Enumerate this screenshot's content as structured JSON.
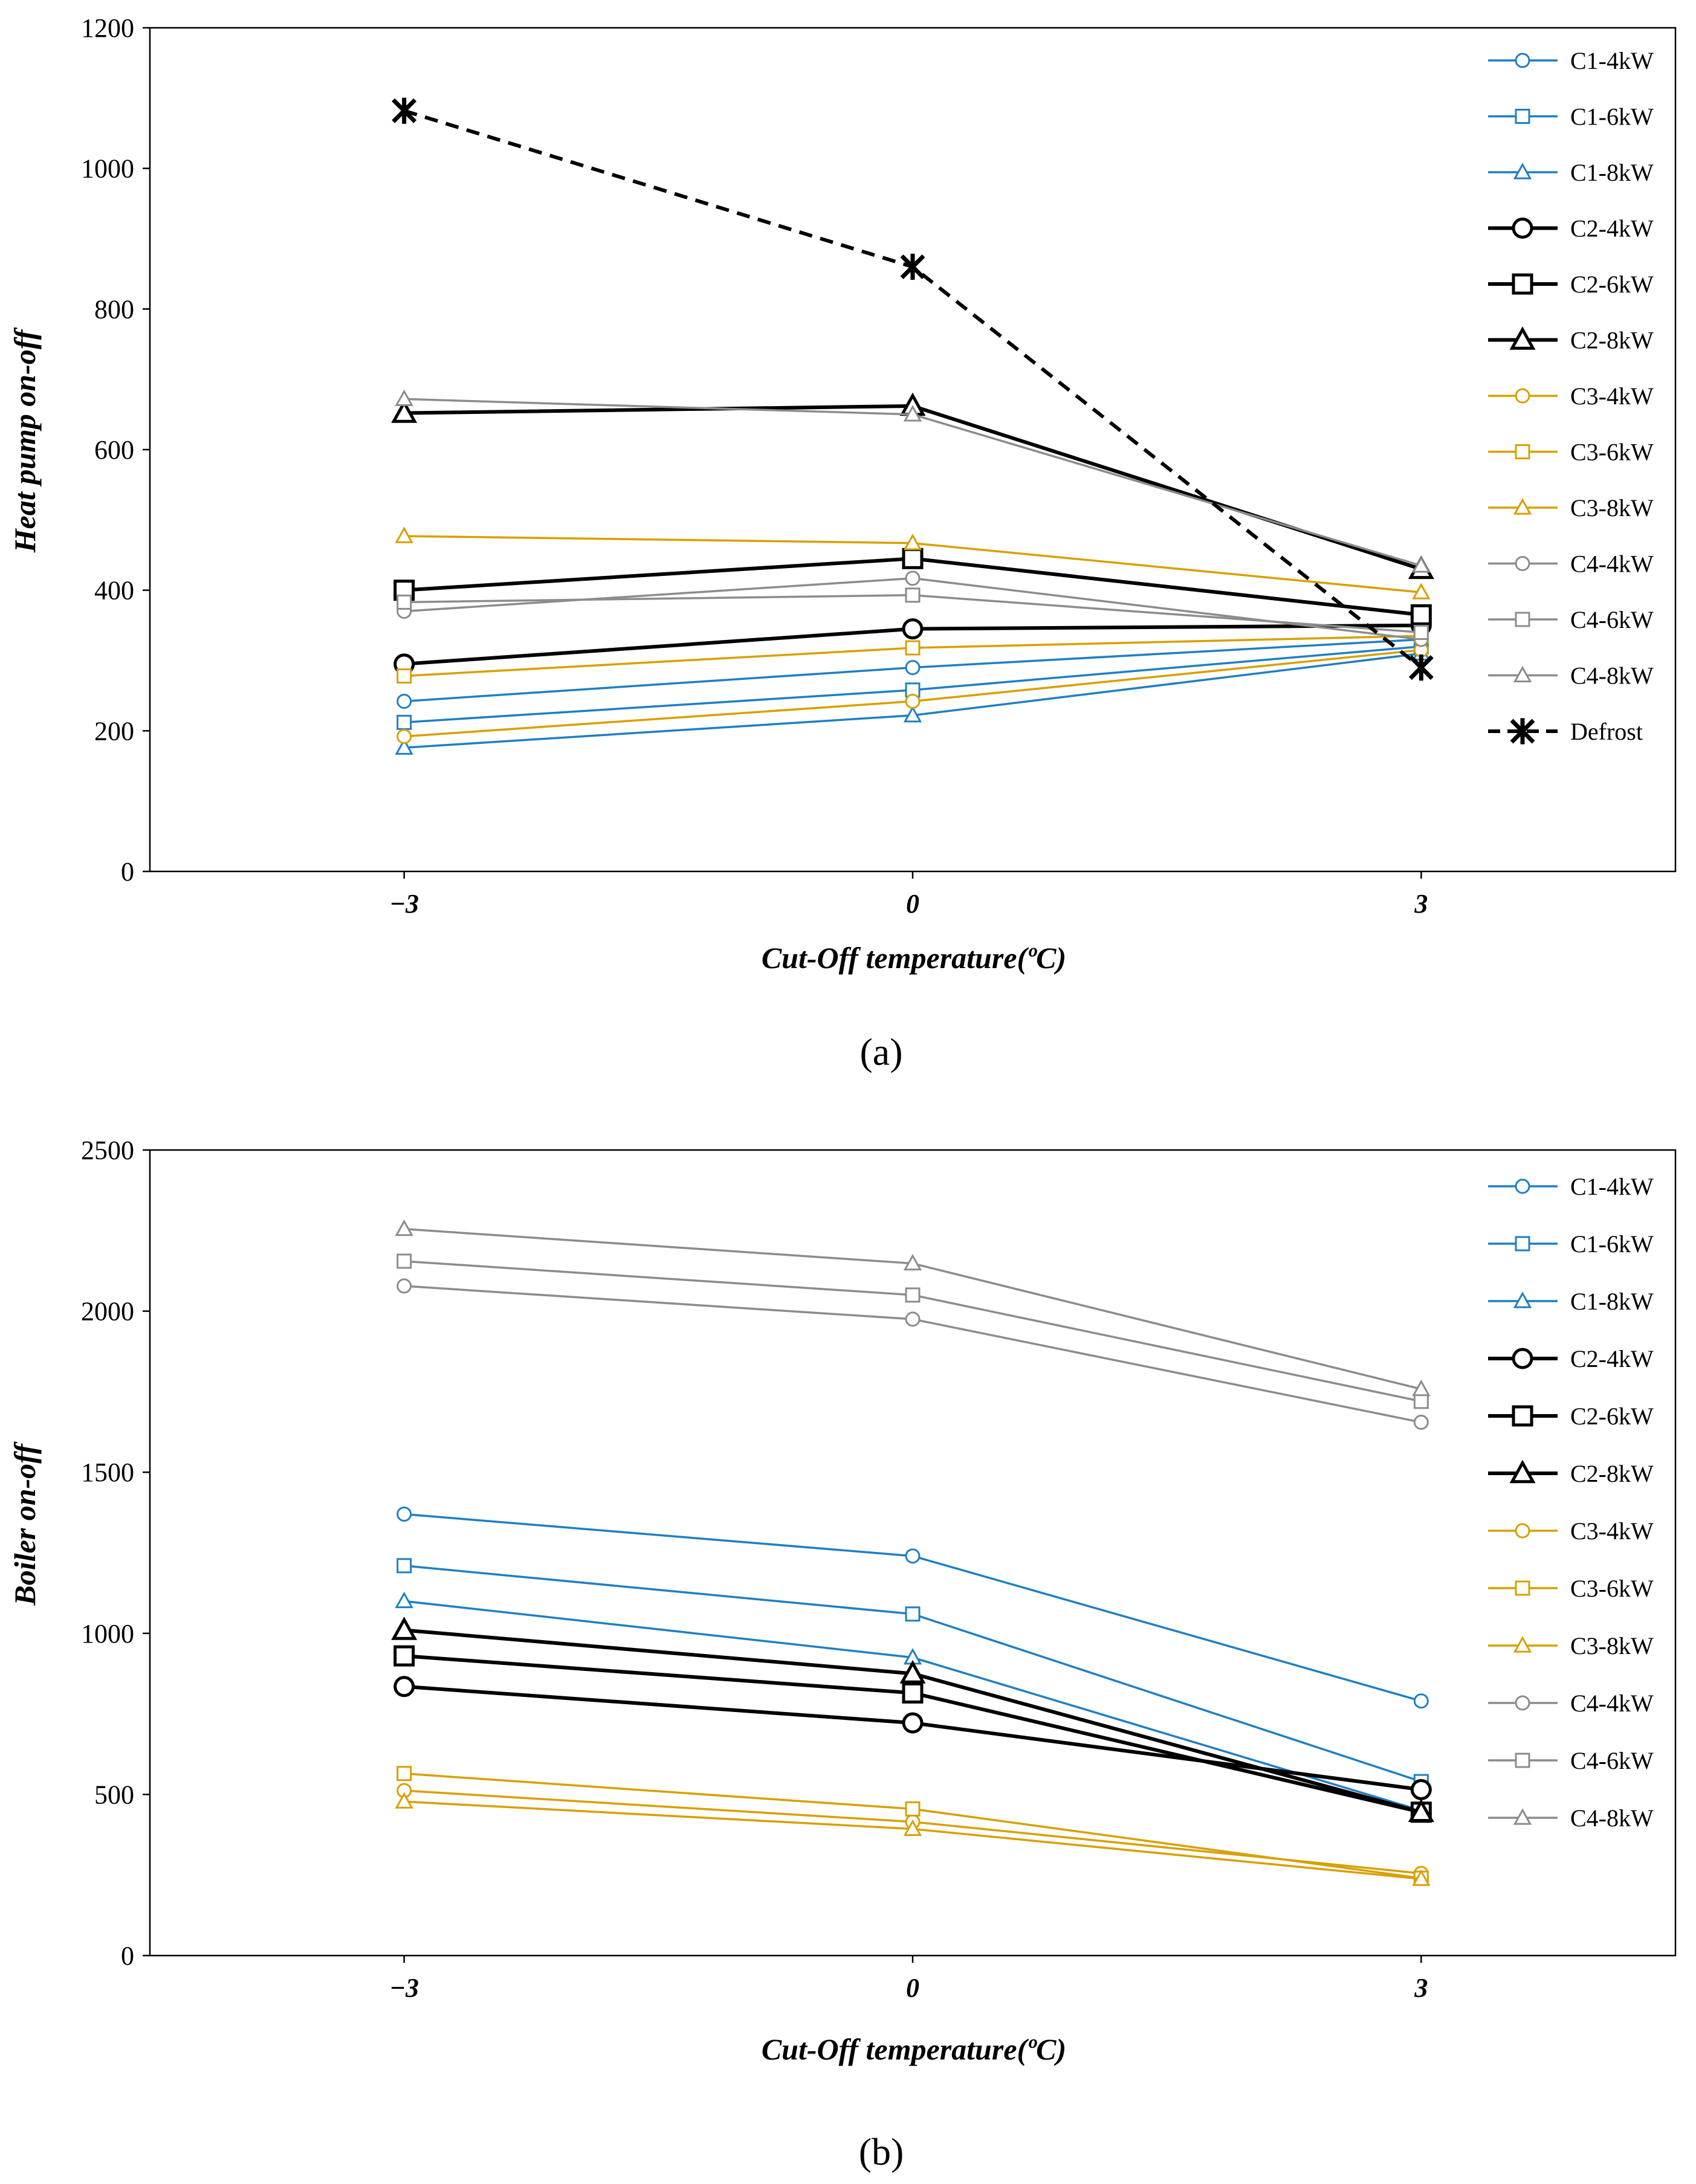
{
  "colors": {
    "C1": "#1f7fc3",
    "C2": "#000000",
    "C3": "#d8a000",
    "C4": "#8c8c8c",
    "Defrost": "#000000"
  },
  "chart_data": [
    {
      "type": "line",
      "panel_label": "(a)",
      "ylabel": "Heat pump on-off",
      "xlabel": "Cut-Off temperature(ºC)",
      "x": [
        -3,
        0,
        3
      ],
      "x_tick_labels": [
        "−3",
        "0",
        "3"
      ],
      "xlim": [
        -4.5,
        4.5
      ],
      "ylim": [
        0,
        1200
      ],
      "y_ticks": [
        0,
        200,
        400,
        600,
        800,
        1000,
        1200
      ],
      "legend_position": "right",
      "series": [
        {
          "name": "C1-4kW",
          "group": "C1",
          "marker": "circle",
          "values": [
            242,
            290,
            330
          ]
        },
        {
          "name": "C1-6kW",
          "group": "C1",
          "marker": "square",
          "values": [
            212,
            258,
            320
          ]
        },
        {
          "name": "C1-8kW",
          "group": "C1",
          "marker": "triangle",
          "values": [
            176,
            222,
            310
          ]
        },
        {
          "name": "C2-4kW",
          "group": "C2",
          "marker": "circle",
          "values": [
            295,
            345,
            350
          ]
        },
        {
          "name": "C2-6kW",
          "group": "C2",
          "marker": "square",
          "values": [
            400,
            445,
            365
          ]
        },
        {
          "name": "C2-8kW",
          "group": "C2",
          "marker": "triangle",
          "values": [
            652,
            662,
            430
          ]
        },
        {
          "name": "C3-4kW",
          "group": "C3",
          "marker": "circle",
          "values": [
            192,
            242,
            315
          ]
        },
        {
          "name": "C3-6kW",
          "group": "C3",
          "marker": "square",
          "values": [
            278,
            318,
            335
          ]
        },
        {
          "name": "C3-8kW",
          "group": "C3",
          "marker": "triangle",
          "values": [
            477,
            467,
            397
          ]
        },
        {
          "name": "C4-4kW",
          "group": "C4",
          "marker": "circle",
          "values": [
            370,
            417,
            330
          ]
        },
        {
          "name": "C4-6kW",
          "group": "C4",
          "marker": "square",
          "values": [
            383,
            393,
            340
          ]
        },
        {
          "name": "C4-8kW",
          "group": "C4",
          "marker": "triangle",
          "values": [
            672,
            650,
            435
          ]
        },
        {
          "name": "Defrost",
          "group": "Defrost",
          "marker": "star",
          "dashed": true,
          "values": [
            1082,
            860,
            290
          ]
        }
      ]
    },
    {
      "type": "line",
      "panel_label": "(b)",
      "ylabel": "Boiler on-off",
      "xlabel": "Cut-Off temperature(ºC)",
      "x": [
        -3,
        0,
        3
      ],
      "x_tick_labels": [
        "−3",
        "0",
        "3"
      ],
      "xlim": [
        -4.5,
        4.5
      ],
      "ylim": [
        0,
        2500
      ],
      "y_ticks": [
        0,
        500,
        1000,
        1500,
        2000,
        2500
      ],
      "legend_position": "right",
      "series": [
        {
          "name": "C1-4kW",
          "group": "C1",
          "marker": "circle",
          "values": [
            1370,
            1240,
            790
          ]
        },
        {
          "name": "C1-6kW",
          "group": "C1",
          "marker": "square",
          "values": [
            1210,
            1060,
            540
          ]
        },
        {
          "name": "C1-8kW",
          "group": "C1",
          "marker": "triangle",
          "values": [
            1100,
            925,
            450
          ]
        },
        {
          "name": "C2-4kW",
          "group": "C2",
          "marker": "circle",
          "values": [
            835,
            722,
            515
          ]
        },
        {
          "name": "C2-6kW",
          "group": "C2",
          "marker": "square",
          "values": [
            930,
            815,
            445
          ]
        },
        {
          "name": "C2-8kW",
          "group": "C2",
          "marker": "triangle",
          "values": [
            1010,
            875,
            445
          ]
        },
        {
          "name": "C3-4kW",
          "group": "C3",
          "marker": "circle",
          "values": [
            512,
            415,
            255
          ]
        },
        {
          "name": "C3-6kW",
          "group": "C3",
          "marker": "square",
          "values": [
            565,
            455,
            240
          ]
        },
        {
          "name": "C3-8kW",
          "group": "C3",
          "marker": "triangle",
          "values": [
            478,
            393,
            238
          ]
        },
        {
          "name": "C4-4kW",
          "group": "C4",
          "marker": "circle",
          "values": [
            2078,
            1975,
            1655
          ]
        },
        {
          "name": "C4-6kW",
          "group": "C4",
          "marker": "square",
          "values": [
            2155,
            2050,
            1720
          ]
        },
        {
          "name": "C4-8kW",
          "group": "C4",
          "marker": "triangle",
          "values": [
            2255,
            2148,
            1758
          ]
        }
      ]
    }
  ]
}
